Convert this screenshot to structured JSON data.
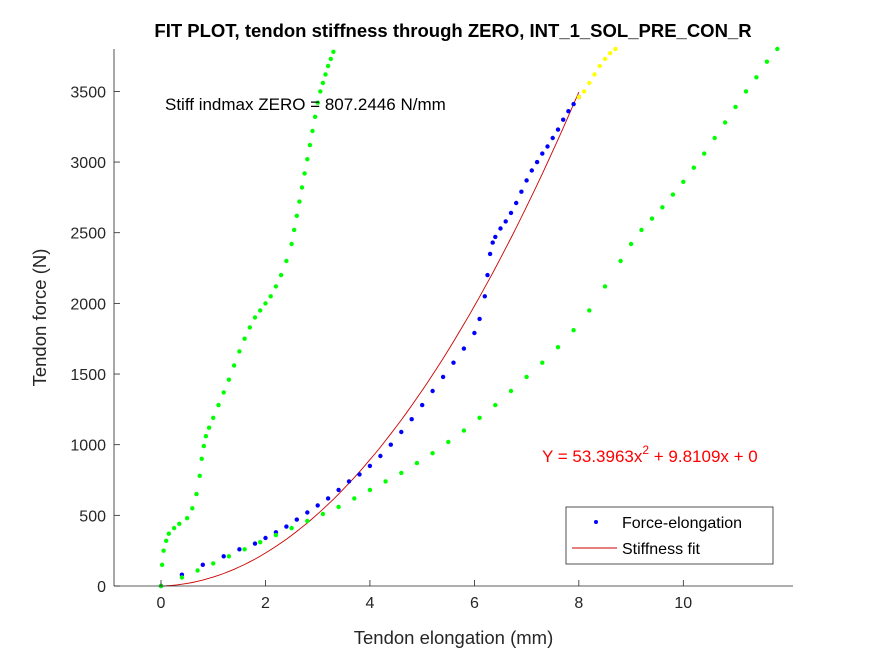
{
  "chart_data": {
    "type": "scatter",
    "title": "FIT PLOT, tendon stiffness through ZERO, INT_1_SOL_PRE_CON_R",
    "xlabel": "Tendon elongation (mm)",
    "ylabel": "Tendon force (N)",
    "xlim": [
      -0.9,
      12.1
    ],
    "ylim": [
      0,
      3800
    ],
    "xticks": [
      0,
      2,
      4,
      6,
      8,
      10
    ],
    "yticks": [
      0,
      500,
      1000,
      1500,
      2000,
      2500,
      3000,
      3500
    ],
    "xtick_labels": [
      "0",
      "2",
      "4",
      "6",
      "8",
      "10"
    ],
    "ytick_labels": [
      "0",
      "500",
      "1000",
      "1500",
      "2000",
      "2500",
      "3000",
      "3500"
    ],
    "grid": false,
    "legend_position": "bottom-right",
    "annotations": {
      "stiffness": "Stiff indmax ZERO = 807.2446 N/mm",
      "equation_prefix": "Y = 53.3963x",
      "equation_exponent": "2",
      "equation_suffix": " + 9.8109x + 0"
    },
    "legend": [
      {
        "label": "Force-elongation",
        "marker": "dot",
        "color": "#0000ff"
      },
      {
        "label": "Stiffness fit",
        "marker": "line",
        "color": "#cc0000"
      }
    ],
    "fit": {
      "a": 53.3963,
      "b": 9.8109,
      "c": 0,
      "x_range": [
        0,
        8
      ],
      "color": "#cc0000"
    },
    "series": [
      {
        "role": "bound-upper",
        "color": "#00ff00",
        "x": [
          0.0,
          0.02,
          0.05,
          0.1,
          0.15,
          0.25,
          0.35,
          0.5,
          0.6,
          0.68,
          0.74,
          0.78,
          0.82,
          0.86,
          0.92,
          1.0,
          1.1,
          1.2,
          1.3,
          1.4,
          1.5,
          1.6,
          1.7,
          1.8,
          1.9,
          2.0,
          2.1,
          2.2,
          2.3,
          2.4,
          2.5,
          2.55,
          2.6,
          2.65,
          2.7,
          2.75,
          2.8,
          2.85,
          2.9,
          2.95,
          3.0,
          3.05,
          3.1,
          3.15,
          3.2,
          3.25,
          3.3,
          3.33
        ],
        "y": [
          0,
          150,
          250,
          320,
          370,
          410,
          440,
          480,
          550,
          650,
          780,
          900,
          990,
          1060,
          1120,
          1190,
          1280,
          1370,
          1460,
          1560,
          1660,
          1750,
          1830,
          1900,
          1950,
          2000,
          2050,
          2120,
          2200,
          2300,
          2420,
          2520,
          2620,
          2720,
          2820,
          2920,
          3020,
          3120,
          3220,
          3320,
          3420,
          3500,
          3560,
          3620,
          3680,
          3730,
          3780,
          3810
        ]
      },
      {
        "name": "Force-elongation",
        "color": "#0000ff",
        "x": [
          0.0,
          0.4,
          0.8,
          1.2,
          1.5,
          1.8,
          2.0,
          2.2,
          2.4,
          2.6,
          2.8,
          3.0,
          3.2,
          3.4,
          3.6,
          3.8,
          4.0,
          4.2,
          4.4,
          4.6,
          4.8,
          5.0,
          5.2,
          5.4,
          5.6,
          5.8,
          6.0,
          6.1,
          6.2,
          6.25,
          6.3,
          6.35,
          6.4,
          6.5,
          6.6,
          6.7,
          6.8,
          6.9,
          7.0,
          7.1,
          7.2,
          7.3,
          7.4,
          7.5,
          7.6,
          7.7,
          7.8,
          7.9,
          8.0
        ],
        "y": [
          0,
          80,
          150,
          210,
          260,
          300,
          340,
          380,
          420,
          470,
          520,
          570,
          620,
          680,
          740,
          790,
          850,
          920,
          1000,
          1090,
          1180,
          1280,
          1380,
          1480,
          1580,
          1680,
          1790,
          1890,
          2050,
          2200,
          2350,
          2430,
          2470,
          2530,
          2580,
          2640,
          2710,
          2790,
          2870,
          2940,
          3000,
          3060,
          3110,
          3170,
          3230,
          3300,
          3360,
          3410,
          3460
        ]
      },
      {
        "role": "extension",
        "color": "#ffff00",
        "x": [
          8.0,
          8.1,
          8.2,
          8.3,
          8.4,
          8.5,
          8.6,
          8.7
        ],
        "y": [
          3460,
          3500,
          3560,
          3620,
          3680,
          3730,
          3770,
          3800
        ]
      },
      {
        "role": "bound-lower",
        "color": "#00ff00",
        "x": [
          0.0,
          0.4,
          0.7,
          1.0,
          1.3,
          1.6,
          1.9,
          2.2,
          2.5,
          2.8,
          3.1,
          3.4,
          3.7,
          4.0,
          4.3,
          4.6,
          4.9,
          5.2,
          5.5,
          5.8,
          6.1,
          6.4,
          6.7,
          7.0,
          7.3,
          7.6,
          7.9,
          8.2,
          8.5,
          8.8,
          9.0,
          9.2,
          9.4,
          9.6,
          9.8,
          10.0,
          10.2,
          10.4,
          10.6,
          10.8,
          11.0,
          11.2,
          11.4,
          11.6,
          11.8
        ],
        "y": [
          0,
          60,
          110,
          160,
          210,
          260,
          310,
          360,
          410,
          460,
          510,
          560,
          620,
          680,
          740,
          800,
          870,
          940,
          1020,
          1100,
          1190,
          1280,
          1380,
          1480,
          1580,
          1690,
          1810,
          1950,
          2120,
          2300,
          2420,
          2520,
          2600,
          2680,
          2770,
          2860,
          2960,
          3060,
          3170,
          3280,
          3390,
          3500,
          3600,
          3710,
          3800
        ]
      }
    ]
  }
}
